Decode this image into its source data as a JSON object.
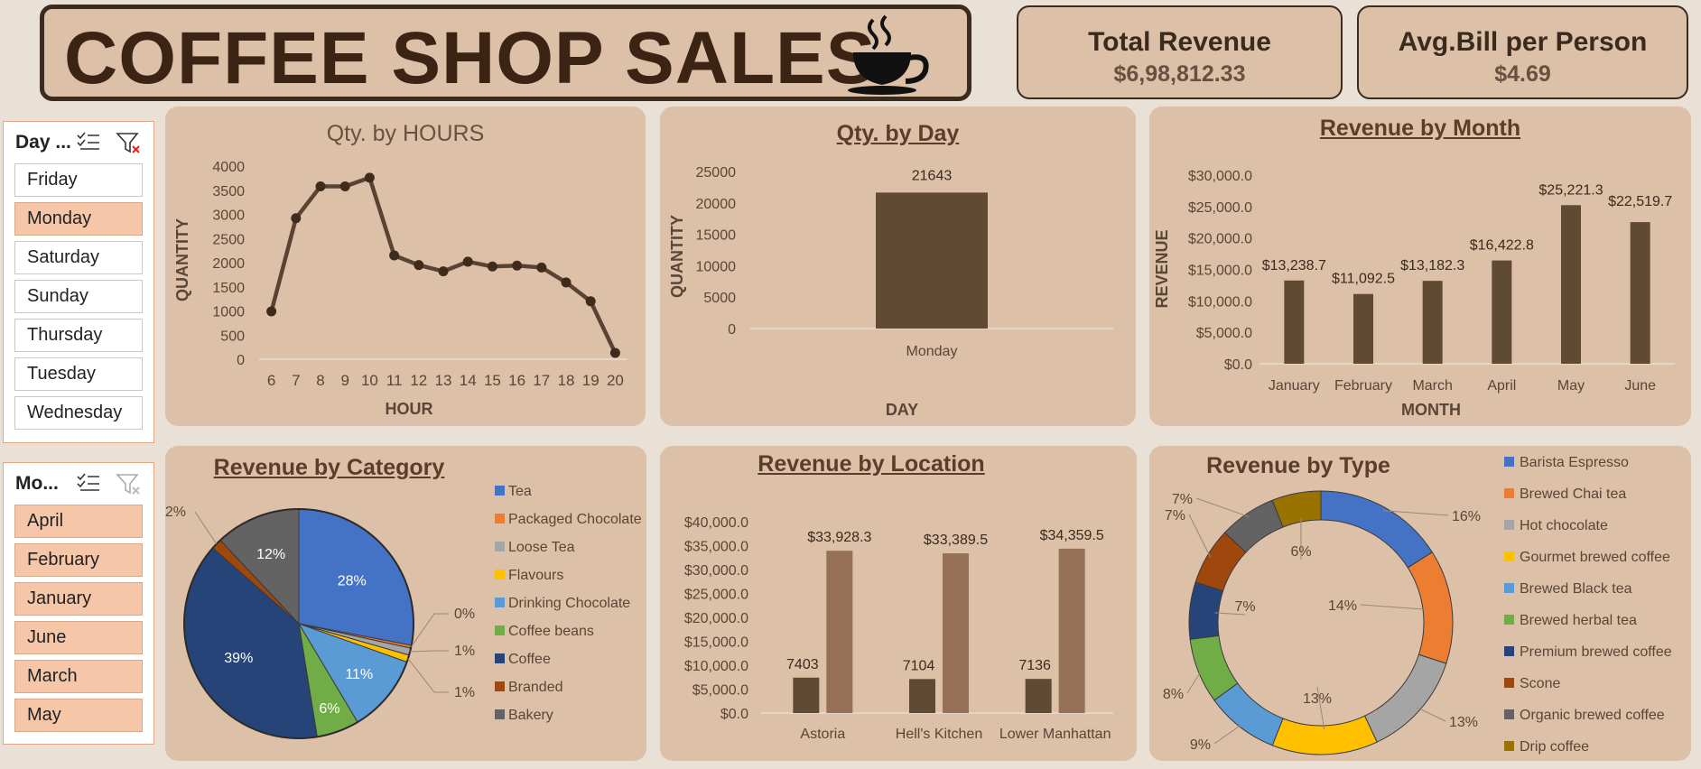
{
  "header": {
    "title": "COFFEE SHOP SALES"
  },
  "kpis": {
    "total_revenue_label": "Total Revenue",
    "total_revenue_value": "$6,98,812.33",
    "avg_bill_label": "Avg.Bill per Person",
    "avg_bill_value": "$4.69"
  },
  "slicers": {
    "day": {
      "title": "Day ...",
      "items": [
        "Friday",
        "Monday",
        "Saturday",
        "Sunday",
        "Thursday",
        "Tuesday",
        "Wednesday"
      ],
      "selected": [
        "Monday"
      ]
    },
    "month": {
      "title": "Mo...",
      "items": [
        "April",
        "February",
        "January",
        "June",
        "March",
        "May"
      ],
      "selected": [
        "April",
        "February",
        "January",
        "June",
        "March",
        "May"
      ]
    }
  },
  "colors": {
    "brown": "#614a33",
    "light_brown": "#967157",
    "panel": "#dcc0a8",
    "line": "#5a4332"
  },
  "chart_data": [
    {
      "id": "hours",
      "type": "line",
      "title": "Qty. by HOURS",
      "xlabel": "HOUR",
      "ylabel": "QUANTITY",
      "x": [
        "6",
        "7",
        "8",
        "9",
        "10",
        "11",
        "12",
        "13",
        "14",
        "15",
        "16",
        "17",
        "18",
        "19",
        "20"
      ],
      "values": [
        990,
        2920,
        3580,
        3580,
        3760,
        2150,
        1950,
        1820,
        2020,
        1920,
        1940,
        1900,
        1590,
        1200,
        130
      ],
      "ylim": [
        0,
        4000
      ],
      "yticks": [
        "0",
        "500",
        "1000",
        "1500",
        "2000",
        "2500",
        "3000",
        "3500",
        "4000"
      ]
    },
    {
      "id": "day",
      "type": "bar",
      "title": "Qty. by Day",
      "xlabel": "DAY",
      "ylabel": "QUANTITY",
      "categories": [
        "Monday"
      ],
      "values": [
        21643
      ],
      "labels": [
        "21643"
      ],
      "ylim": [
        0,
        25000
      ],
      "yticks": [
        "0",
        "5000",
        "10000",
        "15000",
        "20000",
        "25000"
      ]
    },
    {
      "id": "month",
      "type": "bar",
      "title": "Revenue by Month",
      "xlabel": "MONTH",
      "ylabel": "REVENUE",
      "categories": [
        "January",
        "February",
        "March",
        "April",
        "May",
        "June"
      ],
      "values": [
        13238.7,
        11092.5,
        13182.3,
        16422.8,
        25221.3,
        22519.7
      ],
      "labels": [
        "$13,238.7",
        "$11,092.5",
        "$13,182.3",
        "$16,422.8",
        "$25,221.3",
        "$22,519.7"
      ],
      "ylim": [
        0,
        30000
      ],
      "yticks": [
        "$0.0",
        "$5,000.0",
        "$10,000.0",
        "$15,000.0",
        "$20,000.0",
        "$25,000.0",
        "$30,000.0"
      ]
    },
    {
      "id": "category",
      "type": "pie",
      "title": "Revenue by Category",
      "legend": [
        "Tea",
        "Packaged Chocolate",
        "Loose Tea",
        "Flavours",
        "Drinking Chocolate",
        "Coffee beans",
        "Coffee",
        "Branded",
        "Bakery"
      ],
      "values": [
        28,
        0.4,
        1,
        1,
        11,
        6,
        39,
        1.5,
        12
      ],
      "labels": [
        "28%",
        "0%",
        "1%",
        "1%",
        "11%",
        "6%",
        "39%",
        "2%",
        "12%"
      ],
      "colors": [
        "#4472c4",
        "#ed7d31",
        "#a5a5a5",
        "#ffc000",
        "#5b9bd5",
        "#70ad47",
        "#264478",
        "#9e480e",
        "#636363"
      ]
    },
    {
      "id": "location",
      "type": "bar",
      "title": "Revenue by Location",
      "categories": [
        "Astoria",
        "Hell's Kitchen",
        "Lower Manhattan"
      ],
      "series": [
        {
          "values": [
            7403,
            7104,
            7136
          ],
          "labels": [
            "7403",
            "7104",
            "7136"
          ]
        },
        {
          "values": [
            33928.3,
            33389.5,
            34359.5
          ],
          "labels": [
            "$33,928.3",
            "$33,389.5",
            "$34,359.5"
          ]
        }
      ],
      "ylim": [
        0,
        40000
      ],
      "yticks": [
        "$0.0",
        "$5,000.0",
        "$10,000.0",
        "$15,000.0",
        "$20,000.0",
        "$25,000.0",
        "$30,000.0",
        "$35,000.0",
        "$40,000.0"
      ]
    },
    {
      "id": "type",
      "type": "pie",
      "title": "Revenue by Type",
      "legend": [
        "Barista Espresso",
        "Brewed Chai tea",
        "Hot chocolate",
        "Gourmet brewed coffee",
        "Brewed Black tea",
        "Brewed herbal tea",
        "Premium brewed coffee",
        "Scone",
        "Organic brewed coffee",
        "Drip coffee"
      ],
      "values": [
        16,
        14,
        13,
        13,
        9,
        8,
        7,
        7,
        7,
        6
      ],
      "labels": [
        "16%",
        "14%",
        "13%",
        "13%",
        "9%",
        "8%",
        "7%",
        "7%",
        "7%",
        "6%"
      ],
      "colors": [
        "#4472c4",
        "#ed7d31",
        "#a5a5a5",
        "#ffc000",
        "#5b9bd5",
        "#70ad47",
        "#264478",
        "#9e480e",
        "#636363",
        "#997300"
      ]
    }
  ]
}
